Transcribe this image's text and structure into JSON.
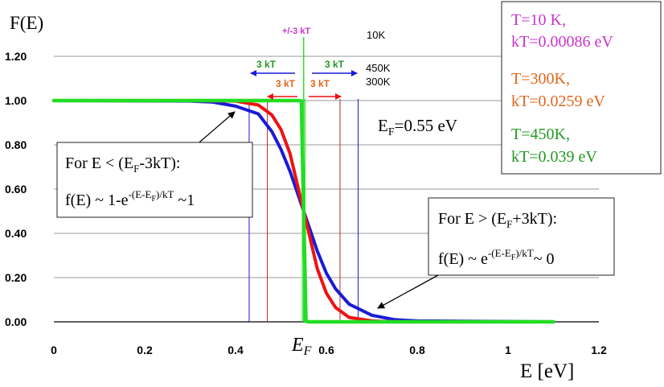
{
  "chart_data": {
    "type": "line",
    "ylabel": "F(E)",
    "xlabel": "E [eV]",
    "xlim": [
      0,
      1.2
    ],
    "ylim": [
      0,
      1.2
    ],
    "grid": true,
    "x_ticks": [
      "0",
      "0.2",
      "0.4",
      "0.6",
      "0.8",
      "1",
      "1.2"
    ],
    "y_ticks": [
      "0.00",
      "0.20",
      "0.40",
      "0.60",
      "0.80",
      "1.00",
      "1.20"
    ],
    "fermi_energy": 0.55,
    "fermi_label": {
      "main": "E",
      "sub": "F"
    },
    "series": [
      {
        "temperature": 10,
        "kT": 0.00086,
        "color": "#22dd22",
        "x": [
          0,
          0.53,
          0.54,
          0.545,
          0.55,
          0.555,
          0.56,
          0.57,
          1.1
        ],
        "y": [
          1.0,
          1.0,
          1.0,
          0.997,
          0.5,
          0.003,
          0.0,
          0.0,
          0.0
        ]
      },
      {
        "temperature": 300,
        "kT": 0.0259,
        "color": "#ee1111",
        "x": [
          0,
          0.3,
          0.4,
          0.45,
          0.48,
          0.5,
          0.52,
          0.55,
          0.58,
          0.6,
          0.62,
          0.65,
          0.7,
          0.75,
          1.1
        ],
        "y": [
          1.0,
          1.0,
          0.998,
          0.98,
          0.935,
          0.87,
          0.76,
          0.5,
          0.24,
          0.13,
          0.065,
          0.02,
          0.004,
          0.0,
          0.0
        ]
      },
      {
        "temperature": 450,
        "kT": 0.039,
        "color": "#1a1ad6",
        "x": [
          0,
          0.3,
          0.35,
          0.4,
          0.45,
          0.48,
          0.5,
          0.52,
          0.55,
          0.58,
          0.6,
          0.62,
          0.65,
          0.7,
          0.75,
          0.8,
          1.1
        ],
        "y": [
          1.0,
          0.998,
          0.993,
          0.975,
          0.94,
          0.86,
          0.78,
          0.68,
          0.5,
          0.32,
          0.22,
          0.15,
          0.08,
          0.03,
          0.01,
          0.004,
          0.0
        ]
      }
    ],
    "kT_markers": [
      {
        "x": 0.43,
        "color": "#1a1ad6"
      },
      {
        "x": 0.67,
        "color": "#1a1ad6"
      },
      {
        "x": 0.47,
        "color": "#c0282a"
      },
      {
        "x": 0.63,
        "color": "#c0282a"
      },
      {
        "x": 0.547,
        "color": "#22dd22"
      },
      {
        "x": 0.553,
        "color": "#22dd22"
      }
    ],
    "annotations": {
      "pm_label": "+/-3 kT",
      "label_10K": "10K",
      "label_450K": "450K",
      "label_300K": "300K",
      "blue_left": "3 kT",
      "blue_right": "3 kT",
      "red_left": "3 kT",
      "red_right": "3 kT",
      "fermi_value_main": "E",
      "fermi_value_sub": "F",
      "fermi_value_rest": "=0.55 eV"
    },
    "legend": {
      "placement": "top-right",
      "entries": [
        {
          "line1": "T=10 K,",
          "line2": "kT=0.00086 eV",
          "color": "#cc33cc"
        },
        {
          "line1": "T=300K,",
          "line2": "kT=0.0259 eV",
          "color": "#e0661a"
        },
        {
          "line1": "T=450K,",
          "line2": "kT=0.039 eV",
          "color": "#229922"
        }
      ]
    },
    "callouts": {
      "low": {
        "cond_a": "For E < (E",
        "cond_sub": "F",
        "cond_b": "-3kT):",
        "f_a": "f(E) ~ 1-e",
        "f_exp_a": "-(E-E",
        "f_exp_sub": "F",
        "f_exp_b": ")/kT",
        "f_b": " ~1"
      },
      "high": {
        "cond_a": "For E > (E",
        "cond_sub": "F",
        "cond_b": "+3kT):",
        "f_a": "f(E) ~ e",
        "f_exp_a": "-(E-E",
        "f_exp_sub": "F",
        "f_exp_b": ")/kT",
        "f_b": "~ 0"
      }
    }
  }
}
